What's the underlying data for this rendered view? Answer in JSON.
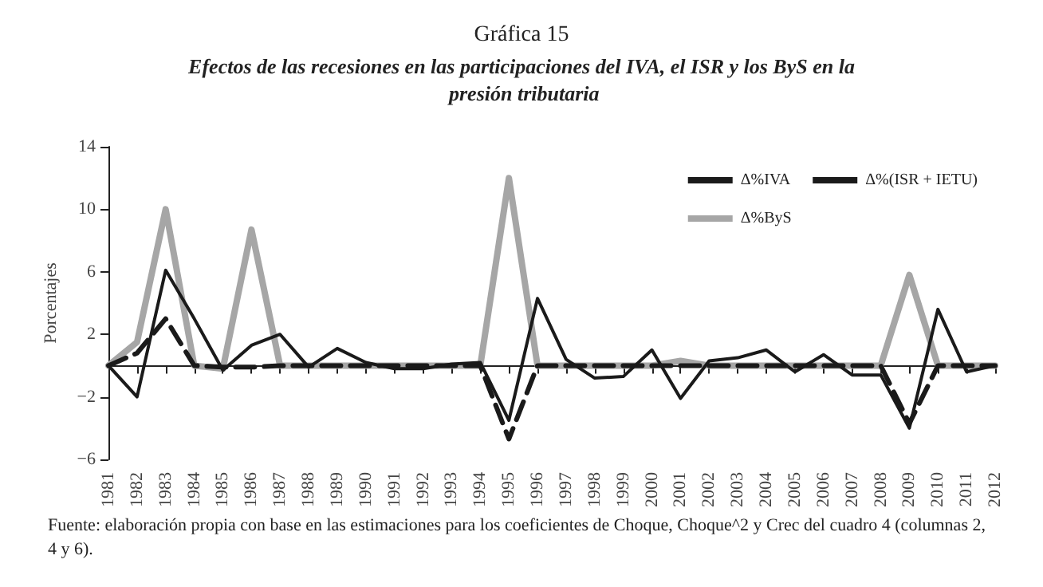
{
  "chart_data": {
    "type": "line",
    "title": "Gráfica 15",
    "subtitle": "Efectos de las recesiones en las participaciones del IVA, el ISR y los ByS en la presión tributaria",
    "ylabel": "Porcentajes",
    "categories": [
      "1981",
      "1982",
      "1983",
      "1984",
      "1985",
      "1986",
      "1987",
      "1988",
      "1989",
      "1990",
      "1991",
      "1992",
      "1993",
      "1994",
      "1995",
      "1996",
      "1997",
      "1998",
      "1999",
      "2000",
      "2001",
      "2002",
      "2003",
      "2004",
      "2005",
      "2006",
      "2007",
      "2008",
      "2009",
      "2010",
      "2011",
      "2012"
    ],
    "series": [
      {
        "name": "Δ%IVA",
        "color": "#1a1a1a",
        "line_style": "solid",
        "values": [
          0,
          -2,
          6.1,
          3,
          -0.3,
          1.3,
          2,
          -0.1,
          1.1,
          0.2,
          -0.2,
          -0.2,
          0.1,
          0.2,
          -3.5,
          4.3,
          0.4,
          -0.8,
          -0.7,
          1,
          -2.1,
          0.3,
          0.5,
          1,
          -0.4,
          0.7,
          -0.6,
          -0.6,
          -4,
          3.6,
          -0.4,
          0
        ]
      },
      {
        "name": "Δ%(ISR + IETU)",
        "color": "#1a1a1a",
        "line_style": "dashed",
        "values": [
          0,
          0.8,
          3,
          0,
          -0.1,
          -0.1,
          0,
          0,
          0,
          0,
          0,
          0,
          0,
          0,
          -4.7,
          0,
          0,
          0,
          0,
          0,
          0,
          0,
          0,
          0,
          0,
          0,
          0,
          0,
          -3.7,
          0,
          0,
          0
        ]
      },
      {
        "name": "Δ%ByS",
        "color": "#a6a6a6",
        "line_style": "solid",
        "values": [
          0,
          1.5,
          10,
          0,
          -0.2,
          8.7,
          0,
          0,
          0,
          0,
          0,
          0,
          0,
          0,
          12,
          0,
          0,
          0,
          0,
          0,
          0.3,
          0,
          0,
          0,
          0,
          0,
          0,
          0,
          5.8,
          0,
          0,
          0
        ]
      }
    ],
    "ylim": [
      -6,
      14
    ],
    "yticks": [
      -6,
      -2,
      2,
      6,
      10,
      14
    ],
    "grid": false,
    "legend": "top right",
    "marker": "none",
    "annotations": [
      "Fuente: elaboración propia con base en las estimaciones para los coeficientes de Choque, Choque^2 y Crec del cuadro 4 (columnas 2, 4 y 6)."
    ]
  }
}
